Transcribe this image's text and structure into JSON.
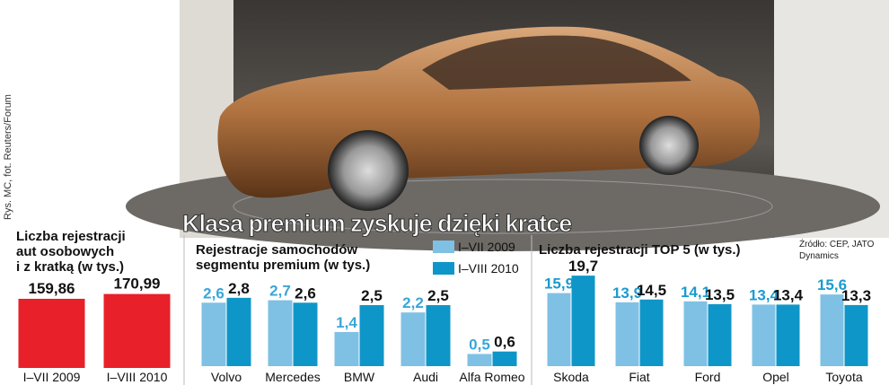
{
  "title": "Klasa premium zyskuje dzięki kratce",
  "credit": "Rys. MC, fot. Reuters/Forum",
  "source": [
    "Źródło: CEP, JATO",
    "Dynamics"
  ],
  "chart_data": [
    {
      "type": "bar",
      "title": [
        "Liczba rejestracji",
        "aut osobowych",
        "i z kratką (w tys.)"
      ],
      "categories": [
        "I–VII 2009",
        "I–VIII 2010"
      ],
      "values": [
        159.86,
        170.99
      ],
      "value_labels": [
        "159,86",
        "170,99"
      ],
      "color": "#e8202a"
    },
    {
      "type": "grouped-bar",
      "title": [
        "Rejestracje samochodów",
        "segmentu premium (w tys.)"
      ],
      "categories": [
        "Volvo",
        "Mercedes",
        "BMW",
        "Audi",
        "Alfa Romeo"
      ],
      "series": [
        {
          "name": "I–VII 2009",
          "color": "#7fc1e4",
          "label_color": "#3aa6d8",
          "values": [
            2.6,
            2.7,
            1.4,
            2.2,
            0.5
          ],
          "value_labels": [
            "2,6",
            "2,7",
            "1,4",
            "2,2",
            "0,5"
          ]
        },
        {
          "name": "I–VIII 2010",
          "color": "#0f96c8",
          "label_color": "#111111",
          "values": [
            2.8,
            2.6,
            2.5,
            2.5,
            0.6
          ],
          "value_labels": [
            "2,8",
            "2,6",
            "2,5",
            "2,5",
            "0,6"
          ]
        }
      ],
      "legend": "top-right"
    },
    {
      "type": "grouped-bar",
      "title": [
        "Liczba rejestracji TOP 5 (w tys.)"
      ],
      "categories": [
        "Skoda",
        "Fiat",
        "Ford",
        "Opel",
        "Toyota"
      ],
      "series": [
        {
          "color": "#7fc1e4",
          "label_color": "#1a9bd0",
          "values": [
            15.9,
            13.9,
            14.1,
            13.4,
            15.6
          ],
          "value_labels": [
            "15,9",
            "13,9",
            "14,1",
            "13,4",
            "15,6"
          ]
        },
        {
          "color": "#0f96c8",
          "label_color": "#111111",
          "values": [
            19.7,
            14.5,
            13.5,
            13.4,
            13.3
          ],
          "value_labels": [
            "19,7",
            "14,5",
            "13,5",
            "13,4",
            "13,3"
          ]
        }
      ]
    }
  ]
}
